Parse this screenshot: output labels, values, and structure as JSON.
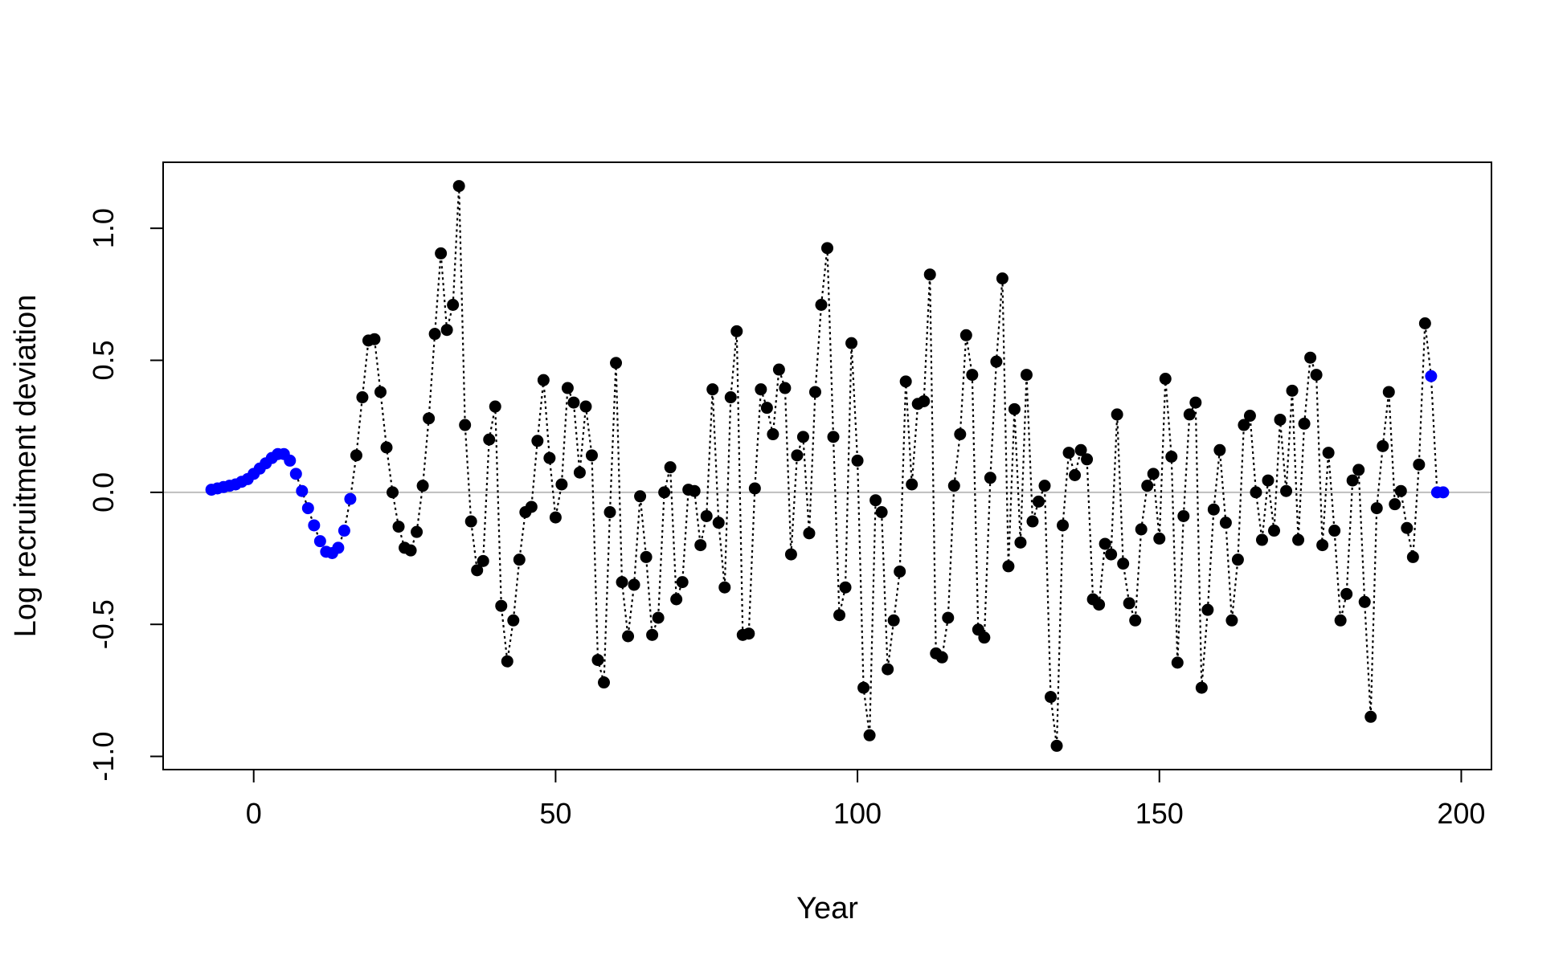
{
  "chart_data": {
    "type": "scatter",
    "title": "",
    "xlabel": "Year",
    "ylabel": "Log recruitment deviation",
    "xlim": [
      -15,
      205
    ],
    "ylim": [
      -1.05,
      1.25
    ],
    "x_ticks": [
      0,
      50,
      100,
      150,
      200
    ],
    "x_tick_labels": [
      "0",
      "50",
      "100",
      "150",
      "200"
    ],
    "y_ticks": [
      -1.0,
      -0.5,
      0.0,
      0.5,
      1.0
    ],
    "y_tick_labels": [
      "-1.0",
      "-0.5",
      "0.0",
      "0.5",
      "1.0"
    ],
    "reference_line": {
      "y": 0,
      "color": "#bebebe"
    },
    "connector": {
      "style": "dotted",
      "color": "#000000"
    },
    "grid": false,
    "legend": "none",
    "colors": {
      "blue_points": "#0000ff",
      "black_points": "#000000"
    },
    "series": [
      {
        "color": "#0000ff",
        "x": [
          -7,
          -6,
          -5,
          -4,
          -3,
          -2,
          -1,
          0,
          1,
          2,
          3,
          4,
          5,
          6,
          7,
          8,
          9,
          10,
          11,
          12,
          13,
          14,
          15,
          16
        ],
        "y": [
          0.01,
          0.015,
          0.02,
          0.025,
          0.03,
          0.04,
          0.05,
          0.07,
          0.09,
          0.11,
          0.13,
          0.145,
          0.145,
          0.12,
          0.07,
          0.005,
          -0.06,
          -0.125,
          -0.185,
          -0.225,
          -0.23,
          -0.21,
          -0.145,
          -0.025
        ]
      },
      {
        "color": "#000000",
        "x": [
          17,
          18,
          19,
          20,
          21,
          22,
          23,
          24,
          25,
          26,
          27,
          28,
          29,
          30,
          31,
          32,
          33,
          34,
          35,
          36,
          37,
          38,
          39,
          40,
          41,
          42,
          43,
          44,
          45,
          46,
          47,
          48,
          49,
          50,
          51,
          52,
          53,
          54,
          55,
          56,
          57,
          58,
          59,
          60,
          61,
          62,
          63,
          64,
          65,
          66,
          67,
          68,
          69,
          70,
          71,
          72,
          73,
          74,
          75,
          76,
          77,
          78,
          79,
          80,
          81,
          82,
          83,
          84,
          85,
          86,
          87,
          88,
          89,
          90,
          91,
          92,
          93,
          94,
          95,
          96,
          97,
          98,
          99,
          100,
          101,
          102,
          103,
          104,
          105,
          106,
          107,
          108,
          109,
          110,
          111,
          112,
          113,
          114,
          115,
          116,
          117,
          118,
          119,
          120,
          121,
          122,
          123,
          124,
          125,
          126,
          127,
          128,
          129,
          130,
          131,
          132,
          133,
          134,
          135,
          136,
          137,
          138,
          139,
          140,
          141,
          142,
          143,
          144,
          145,
          146,
          147,
          148,
          149,
          150,
          151,
          152,
          153,
          154,
          155,
          156,
          157,
          158,
          159,
          160,
          161,
          162,
          163,
          164,
          165,
          166,
          167,
          168,
          169,
          170,
          171,
          172,
          173,
          174,
          175,
          176,
          177,
          178,
          179,
          180,
          181,
          182,
          183,
          184,
          185,
          186,
          187,
          188,
          189,
          190,
          191,
          192,
          193,
          194
        ],
        "y": [
          0.14,
          0.36,
          0.575,
          0.58,
          0.38,
          0.17,
          0.0,
          -0.13,
          -0.21,
          -0.22,
          -0.15,
          0.025,
          0.28,
          0.6,
          0.905,
          0.615,
          0.71,
          1.16,
          0.255,
          -0.11,
          -0.295,
          -0.26,
          0.2,
          0.325,
          -0.43,
          -0.64,
          -0.485,
          -0.255,
          -0.075,
          -0.055,
          0.195,
          0.425,
          0.13,
          -0.095,
          0.03,
          0.395,
          0.34,
          0.075,
          0.325,
          0.14,
          -0.635,
          -0.72,
          -0.075,
          0.49,
          -0.34,
          -0.545,
          -0.35,
          -0.015,
          -0.245,
          -0.54,
          -0.475,
          0.0,
          0.095,
          -0.405,
          -0.34,
          0.01,
          0.005,
          -0.2,
          -0.09,
          0.39,
          -0.115,
          -0.36,
          0.36,
          0.61,
          -0.54,
          -0.535,
          0.015,
          0.39,
          0.32,
          0.22,
          0.465,
          0.395,
          -0.235,
          0.14,
          0.21,
          -0.155,
          0.38,
          0.71,
          0.925,
          0.21,
          -0.465,
          -0.36,
          0.565,
          0.12,
          -0.74,
          -0.92,
          -0.03,
          -0.075,
          -0.67,
          -0.485,
          -0.3,
          0.42,
          0.03,
          0.335,
          0.345,
          0.825,
          -0.61,
          -0.625,
          -0.475,
          0.025,
          0.22,
          0.595,
          0.445,
          -0.52,
          -0.55,
          0.055,
          0.495,
          0.81,
          -0.28,
          0.315,
          -0.19,
          0.445,
          -0.11,
          -0.035,
          0.025,
          -0.775,
          -0.96,
          -0.125,
          0.15,
          0.065,
          0.16,
          0.125,
          -0.405,
          -0.425,
          -0.195,
          -0.235,
          0.295,
          -0.27,
          -0.42,
          -0.485,
          -0.14,
          0.025,
          0.07,
          -0.175,
          0.43,
          0.135,
          -0.645,
          -0.09,
          0.295,
          0.34,
          -0.74,
          -0.445,
          -0.065,
          0.16,
          -0.115,
          -0.485,
          -0.255,
          0.255,
          0.29,
          0.0,
          -0.18,
          0.045,
          -0.145,
          0.275,
          0.005,
          0.385,
          -0.18,
          0.26,
          0.51,
          0.445,
          -0.2,
          0.15,
          -0.145,
          -0.485,
          -0.385,
          0.045,
          0.085,
          -0.415,
          -0.85,
          -0.06,
          0.175,
          0.38,
          -0.045,
          0.005,
          -0.135,
          -0.245,
          0.105,
          0.64
        ]
      },
      {
        "color": "#0000ff",
        "x": [
          195,
          196,
          197
        ],
        "y": [
          0.44,
          0.0,
          0.0
        ]
      }
    ]
  }
}
